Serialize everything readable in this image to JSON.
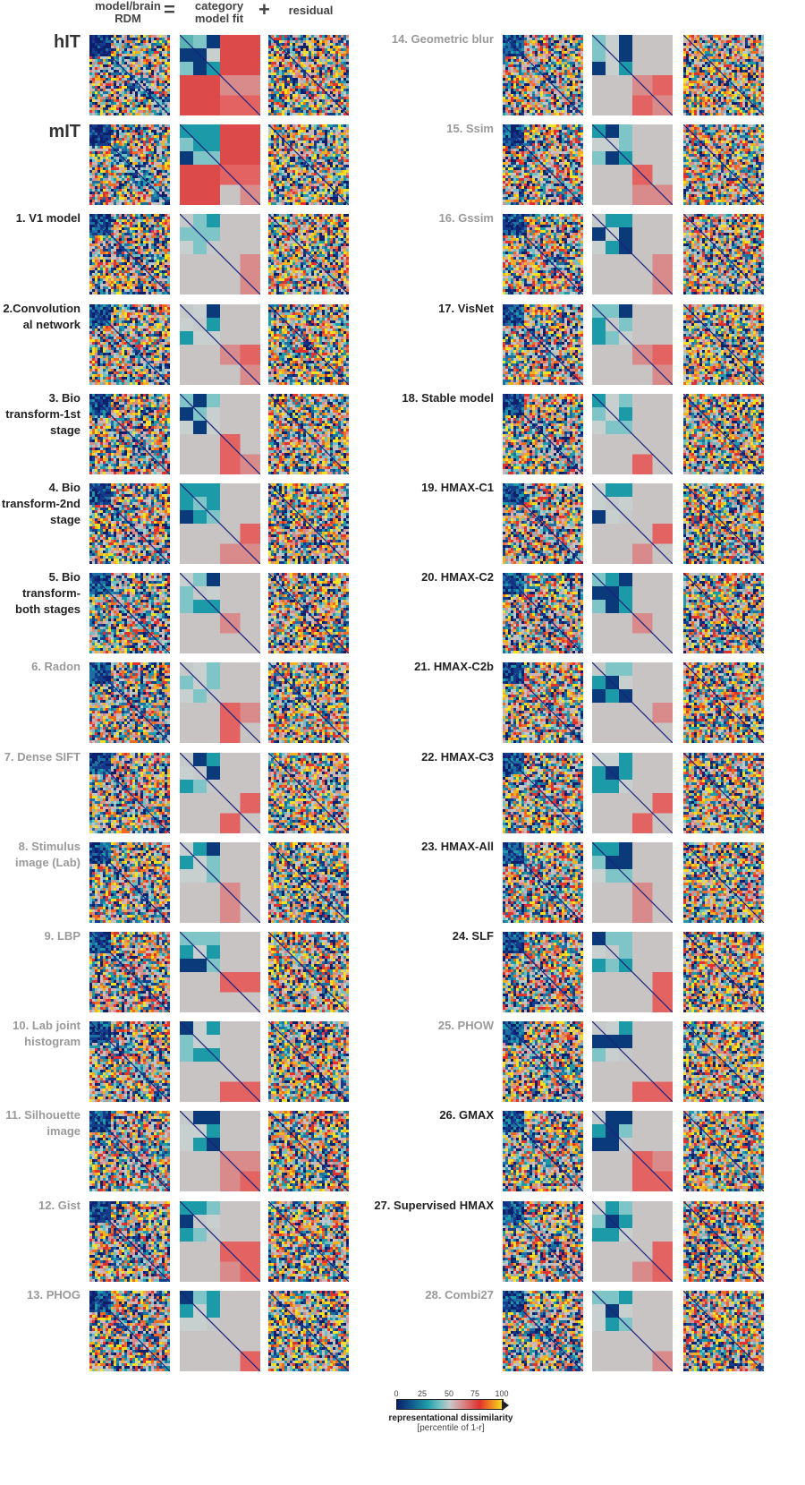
{
  "header": {
    "col1": "model/brain RDM",
    "eq": "=",
    "col2": "category model fit",
    "plus": "+",
    "col3": "residual"
  },
  "panels": [
    {
      "label": "hIT",
      "style": "big"
    },
    {
      "label": "mIT",
      "style": "big"
    },
    {
      "label": "1. V1 model",
      "style": "dark"
    },
    {
      "label": "2.Convolution al network",
      "style": "dark"
    },
    {
      "label": "3. Bio transform-1st stage",
      "style": "dark"
    },
    {
      "label": "4. Bio transform-2nd stage",
      "style": "dark"
    },
    {
      "label": "5. Bio transform- both stages",
      "style": "dark"
    },
    {
      "label": "6. Radon",
      "style": "gray"
    },
    {
      "label": "7. Dense SIFT",
      "style": "gray"
    },
    {
      "label": "8. Stimulus image (Lab)",
      "style": "gray"
    },
    {
      "label": "9. LBP",
      "style": "gray"
    },
    {
      "label": "10. Lab joint histogram",
      "style": "gray"
    },
    {
      "label": "11. Silhouette image",
      "style": "gray"
    },
    {
      "label": "12. Gist",
      "style": "gray"
    },
    {
      "label": "13. PHOG",
      "style": "gray"
    },
    {
      "label": "14. Geometric blur",
      "style": "gray"
    },
    {
      "label": "15. Ssim",
      "style": "gray"
    },
    {
      "label": "16. Gssim",
      "style": "gray"
    },
    {
      "label": "17. VisNet",
      "style": "dark"
    },
    {
      "label": "18. Stable model",
      "style": "dark"
    },
    {
      "label": "19. HMAX-C1",
      "style": "dark"
    },
    {
      "label": "20. HMAX-C2",
      "style": "dark"
    },
    {
      "label": "21. HMAX-C2b",
      "style": "dark"
    },
    {
      "label": "22. HMAX-C3",
      "style": "dark"
    },
    {
      "label": "23. HMAX-All",
      "style": "dark"
    },
    {
      "label": "24. SLF",
      "style": "dark"
    },
    {
      "label": "25. PHOW",
      "style": "gray"
    },
    {
      "label": "26. GMAX",
      "style": "dark"
    },
    {
      "label": "27. Supervised HMAX",
      "style": "dark"
    },
    {
      "label": "28. Combi27",
      "style": "gray"
    }
  ],
  "colorbar": {
    "ticks": [
      "0",
      "25",
      "50",
      "75",
      "100"
    ],
    "title": "representational dissimilarity",
    "subtitle": "[percentile of 1-r]"
  },
  "colors": {
    "low": "#0b1f6a",
    "mid": "#c9c9c9",
    "high": "#e03030",
    "top": "#f7e020",
    "diagonal": "#1a237e"
  }
}
